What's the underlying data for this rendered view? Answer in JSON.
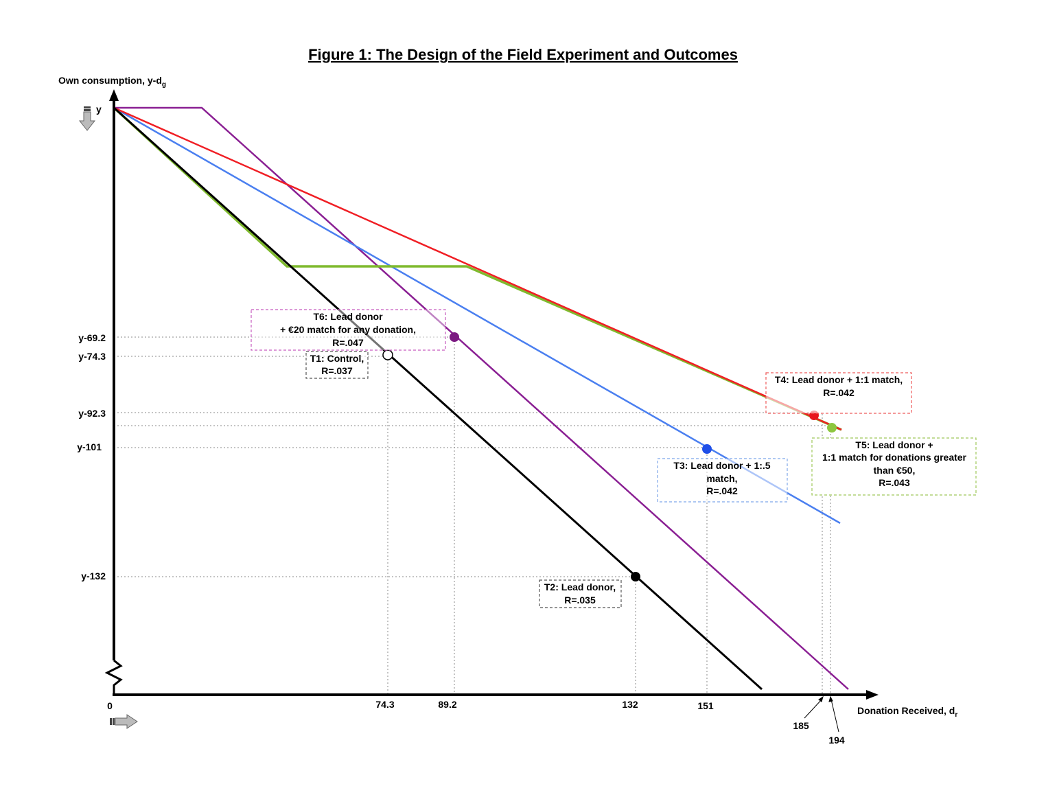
{
  "title": "Figure 1: The Design of the Field Experiment and Outcomes",
  "y_axis_label": "Own consumption, y-d",
  "y_axis_label_sub": "g",
  "x_axis_label": "Donation Received, d",
  "x_axis_label_sub": "r",
  "y_top_label": "y",
  "origin_label": "0",
  "y_ticks": [
    "y-69.2",
    "y-74.3",
    "y-92.3",
    "y-101",
    "y-132"
  ],
  "x_ticks": [
    "74.3",
    "89.2",
    "132",
    "151",
    "185",
    "194"
  ],
  "treatments": {
    "t1": {
      "lines": [
        "T1: Control,",
        "R=.037"
      ],
      "donation": 74.3,
      "color": "#ffffff"
    },
    "t2": {
      "lines": [
        "T2: Lead donor,",
        "R=.035"
      ],
      "donation": 132,
      "color": "#000000"
    },
    "t3": {
      "lines": [
        "T3: Lead donor + 1:.5",
        "match,",
        "R=.042"
      ],
      "donation": 151,
      "color": "#1f4fe8"
    },
    "t4": {
      "lines": [
        "T4: Lead donor + 1:1 match,",
        "R=.042"
      ],
      "donation": 185,
      "color": "#e8161e"
    },
    "t5": {
      "lines": [
        "T5: Lead donor +",
        "1:1 match for donations greater",
        "than €50,",
        "R=.043"
      ],
      "donation": 194,
      "color": "#8dc63f"
    },
    "t6": {
      "lines": [
        "T6: Lead donor",
        "+ €20 match for any donation,",
        "R=.047"
      ],
      "donation": 89.2,
      "color": "#7b1a82"
    }
  },
  "colors": {
    "control": "#000000",
    "t3": "#4a7ff0",
    "t4": "#f01e24",
    "t5": "#7fba2e",
    "t6": "#8a1f93"
  }
}
